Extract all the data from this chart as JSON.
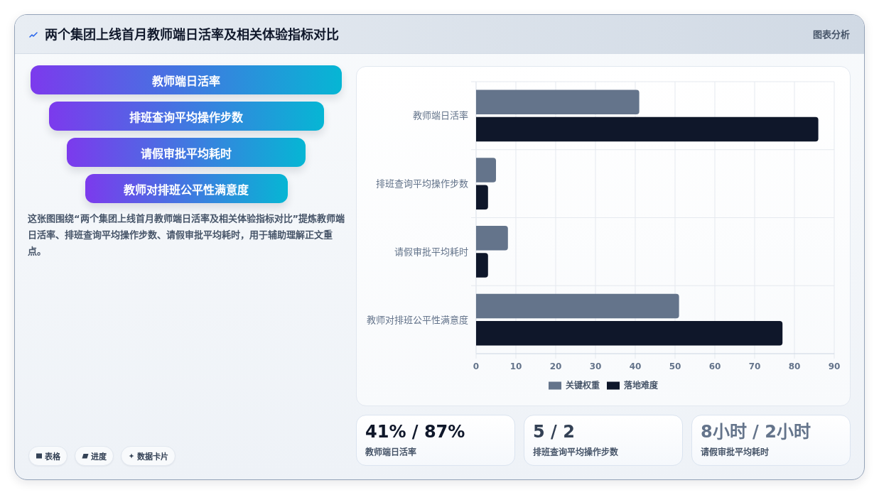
{
  "chart_data": [
    {
      "type": "other",
      "title": "两个集团上线首月教师端日活率及相关体验指标对比",
      "categories": [
        "教师端日活率",
        "排班查询平均操作步数",
        "请假审批平均耗时",
        "教师对排班公平性满意度"
      ],
      "annotations": [
        "图表分析",
        "这张图围绕“两个集团上线首月教师端日活率及相关体验指标对比”提炼教师端日活率、排班查询平均操作步数、请假审批平均耗时，用于辅助理解正文重点。",
        "表格",
        "进度",
        "数据卡片"
      ]
    },
    {
      "type": "bar",
      "orientation": "horizontal",
      "categories": [
        "教师端日活率",
        "排班查询平均操作步数",
        "请假审批平均耗时",
        "教师对排班公平性满意度"
      ],
      "series": [
        {
          "name": "关键权重",
          "color": "#64748b",
          "values": [
            41,
            5,
            8,
            51
          ]
        },
        {
          "name": "落地难度",
          "color": "#0f172a",
          "values": [
            86,
            3,
            3,
            77
          ]
        }
      ],
      "xlim": [
        0,
        90
      ],
      "xticks": [
        0,
        10,
        20,
        30,
        40,
        50,
        60,
        70,
        80,
        90
      ],
      "grid": true,
      "legend": "bottom"
    },
    {
      "type": "other",
      "title": "41% / 87%",
      "subtitle": "教师端日活率"
    },
    {
      "type": "other",
      "title": "5 / 2",
      "subtitle": "排班查询平均操作步数"
    },
    {
      "type": "other",
      "title": "8小时 / 2小时",
      "subtitle": "请假审批平均耗时"
    }
  ]
}
